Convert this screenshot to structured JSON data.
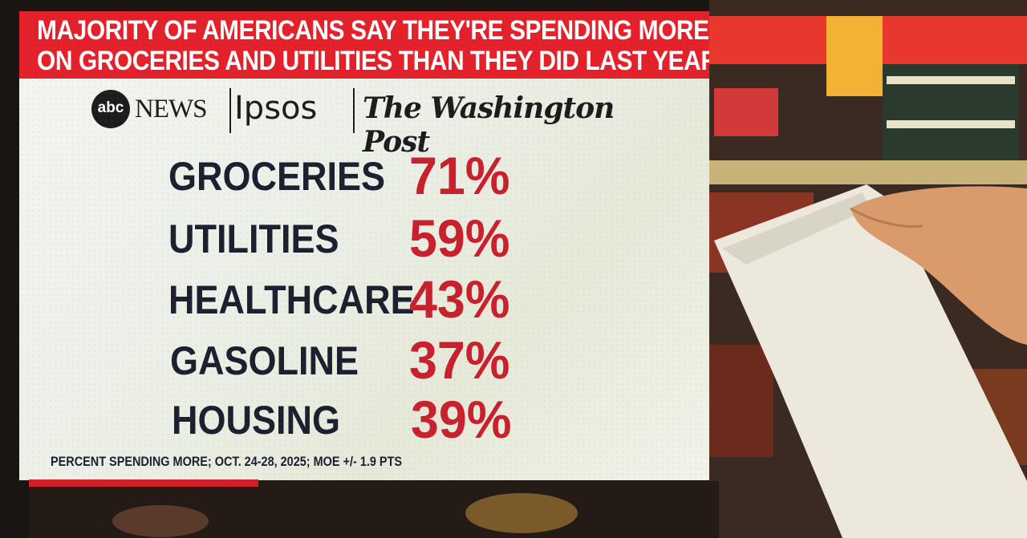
{
  "headline": {
    "line1": "MAJORITY OF AMERICANS SAY THEY'RE SPENDING MORE",
    "line2": "ON GROCERIES AND UTILITIES THAN THEY DID LAST YEAR"
  },
  "logos": {
    "abc_mark": "abc",
    "abc_word": "NEWS",
    "ipsos": "Ipsos",
    "wapo": "The Washington Post"
  },
  "footnote": "PERCENT SPENDING MORE; OCT. 24-28, 2025; MOE +/- 1.9 PTS",
  "colors": {
    "banner": "#e4202a",
    "value": "#c8202c",
    "label": "#1b1f2e"
  },
  "chart_data": {
    "type": "table",
    "title": "MAJORITY OF AMERICANS SAY THEY'RE SPENDING MORE ON GROCERIES AND UTILITIES THAN THEY DID LAST YEAR",
    "categories": [
      "GROCERIES",
      "UTILITIES",
      "HEALTHCARE",
      "GASOLINE",
      "HOUSING"
    ],
    "values": [
      71,
      59,
      43,
      37,
      39
    ],
    "value_labels": [
      "71%",
      "59%",
      "43%",
      "37%",
      "39%"
    ],
    "unit": "%",
    "note": "PERCENT SPENDING MORE; OCT. 24-28, 2025; MOE +/- 1.9 PTS"
  }
}
